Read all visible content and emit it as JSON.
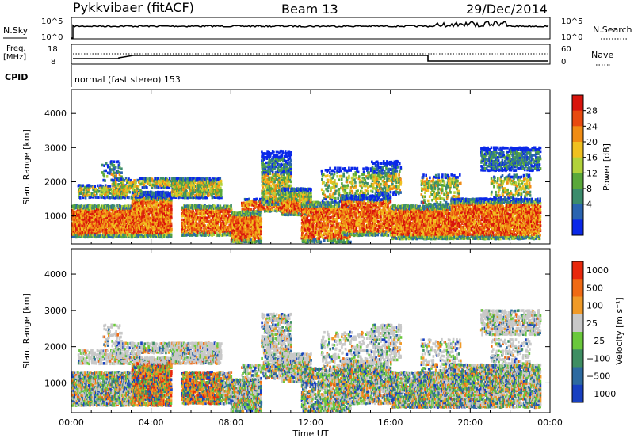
{
  "header": {
    "radar": "Pykkvibaer (fitACF)",
    "beam": "Beam 13",
    "date": "29/Dec/2014"
  },
  "top_panels": {
    "nsky_label": "N.Sky",
    "nsearch_label": "N.Search",
    "noise_ticks_left": [
      "10^5",
      "10^0"
    ],
    "noise_ticks_right": [
      "10^5",
      "10^0"
    ],
    "freq_label_1": "Freq.",
    "freq_label_2": "[MHz]",
    "freq_ticks": [
      "18",
      "8"
    ],
    "nave_label": "Nave",
    "nave_ticks": [
      "60",
      "0"
    ],
    "cpid_label": "CPID",
    "cpid_text": "normal (fast stereo) 153"
  },
  "chart_data": [
    {
      "type": "heatmap",
      "name": "power",
      "ylabel": "Slant Range [km]",
      "xlabel": "Time UT",
      "x_ticks": [
        "00:00",
        "04:00",
        "08:00",
        "12:00",
        "16:00",
        "20:00",
        "00:00"
      ],
      "y_ticks": [
        1000,
        2000,
        3000,
        4000
      ],
      "ylim": [
        180,
        4700
      ],
      "xlim_hours": [
        0,
        24
      ],
      "colorbar": {
        "label": "Power [dB]",
        "ticks": [
          "4",
          "8",
          "12",
          "16",
          "20",
          "24",
          "28"
        ],
        "colors": [
          "#0a28e8",
          "#2a64b0",
          "#3b8c6c",
          "#5aa83a",
          "#b2d23a",
          "#f0c020",
          "#f08c14",
          "#e84a10",
          "#d8140c"
        ]
      }
    },
    {
      "type": "heatmap",
      "name": "velocity",
      "ylabel": "Slant Range [km]",
      "xlabel": "Time UT",
      "x_ticks": [
        "00:00",
        "04:00",
        "08:00",
        "12:00",
        "16:00",
        "20:00",
        "00:00"
      ],
      "y_ticks": [
        1000,
        2000,
        3000,
        4000
      ],
      "ylim": [
        180,
        4700
      ],
      "xlim_hours": [
        0,
        24
      ],
      "colorbar": {
        "label": "Velocity [m s⁻¹]",
        "ticks": [
          "1000",
          "500",
          "100",
          "25",
          "−25",
          "−100",
          "−500",
          "−1000"
        ],
        "colors": [
          "#1840c0",
          "#2d6aa0",
          "#3e8e62",
          "#6ac83c",
          "#c8c8c8",
          "#f09a28",
          "#f06a14",
          "#e8280c"
        ]
      }
    }
  ]
}
